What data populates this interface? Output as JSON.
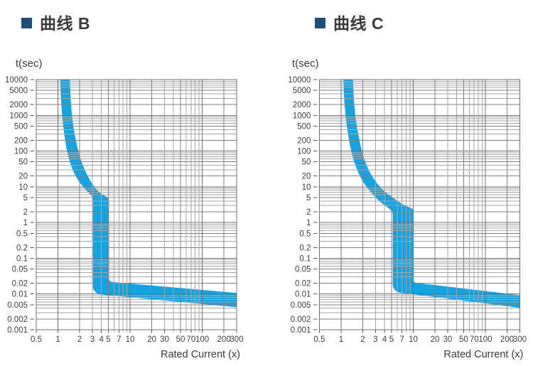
{
  "colors": {
    "background": "#ffffff",
    "band": "#15a4e1",
    "title_bullet": "#1f4e79",
    "title_text": "#3a3a3a",
    "grid_major": "#6f6f6f",
    "grid_mid": "#7f7f7f",
    "grid_minor": "#a6a6a6",
    "tick_mark": "#555555",
    "axis_text": "#3d3d3d"
  },
  "chart_data": [
    {
      "type": "area",
      "title": "曲线 B",
      "xlabel": "Rated Current (x)",
      "ylabel": "t(sec)",
      "x_scale": "log",
      "y_scale": "log",
      "xlim": [
        0.5,
        300
      ],
      "ylim": [
        0.001,
        10000
      ],
      "grid": "log-log full minor grid",
      "x_tick_labels": [
        0.5,
        1,
        2,
        3,
        4,
        5,
        7,
        10,
        20,
        30,
        50,
        70,
        100,
        200,
        300
      ],
      "y_tick_labels": [
        10000,
        5000,
        2000,
        1000,
        500,
        200,
        100,
        50,
        20,
        10,
        5,
        2,
        1,
        0.5,
        0.2,
        0.1,
        0.05,
        0.02,
        0.01,
        0.005,
        0.002,
        0.001
      ],
      "band": {
        "upper": [
          [
            1.45,
            10000
          ],
          [
            1.5,
            3000
          ],
          [
            1.56,
            1000
          ],
          [
            1.66,
            400
          ],
          [
            1.82,
            150
          ],
          [
            2.05,
            60
          ],
          [
            2.4,
            27
          ],
          [
            2.9,
            13
          ],
          [
            3.7,
            7
          ],
          [
            5.1,
            4.8
          ],
          [
            5.1,
            0.022
          ],
          [
            300,
            0.0105
          ]
        ],
        "lower": [
          [
            1.07,
            10000
          ],
          [
            1.1,
            3000
          ],
          [
            1.14,
            1000
          ],
          [
            1.2,
            400
          ],
          [
            1.28,
            150
          ],
          [
            1.42,
            60
          ],
          [
            1.62,
            27
          ],
          [
            1.95,
            14
          ],
          [
            2.45,
            8
          ],
          [
            3.05,
            5.2
          ],
          [
            3.05,
            0.0135
          ],
          [
            3.6,
            0.0098
          ],
          [
            300,
            0.0042
          ]
        ]
      },
      "magnetic_trip_range_x": [
        3,
        5
      ]
    },
    {
      "type": "area",
      "title": "曲线 C",
      "xlabel": "Rated Current (x)",
      "ylabel": "t(sec)",
      "x_scale": "log",
      "y_scale": "log",
      "xlim": [
        0.5,
        300
      ],
      "ylim": [
        0.001,
        10000
      ],
      "grid": "log-log full minor grid",
      "x_tick_labels": [
        0.5,
        1,
        2,
        3,
        4,
        5,
        7,
        10,
        20,
        30,
        50,
        70,
        100,
        200,
        300
      ],
      "y_tick_labels": [
        10000,
        5000,
        2000,
        1000,
        500,
        200,
        100,
        50,
        20,
        10,
        5,
        2,
        1,
        0.5,
        0.2,
        0.1,
        0.05,
        0.02,
        0.01,
        0.005,
        0.002,
        0.001
      ],
      "band": {
        "upper": [
          [
            1.45,
            10000
          ],
          [
            1.5,
            3000
          ],
          [
            1.57,
            1000
          ],
          [
            1.68,
            400
          ],
          [
            1.85,
            150
          ],
          [
            2.08,
            60
          ],
          [
            2.45,
            27
          ],
          [
            3.0,
            14
          ],
          [
            3.8,
            8
          ],
          [
            5.2,
            5
          ],
          [
            6.8,
            3.4
          ],
          [
            8.5,
            2.75
          ],
          [
            10,
            2.4
          ],
          [
            10,
            0.021
          ],
          [
            300,
            0.009
          ]
        ],
        "lower": [
          [
            1.07,
            10000
          ],
          [
            1.1,
            3000
          ],
          [
            1.15,
            1000
          ],
          [
            1.22,
            400
          ],
          [
            1.32,
            150
          ],
          [
            1.47,
            60
          ],
          [
            1.7,
            27
          ],
          [
            2.0,
            14
          ],
          [
            2.45,
            8
          ],
          [
            3.0,
            5
          ],
          [
            3.7,
            3.4
          ],
          [
            4.5,
            2.6
          ],
          [
            5.2,
            2.0
          ],
          [
            5.2,
            0.0155
          ],
          [
            5.9,
            0.0112
          ],
          [
            300,
            0.004
          ]
        ]
      },
      "magnetic_trip_range_x": [
        5,
        10
      ]
    }
  ]
}
